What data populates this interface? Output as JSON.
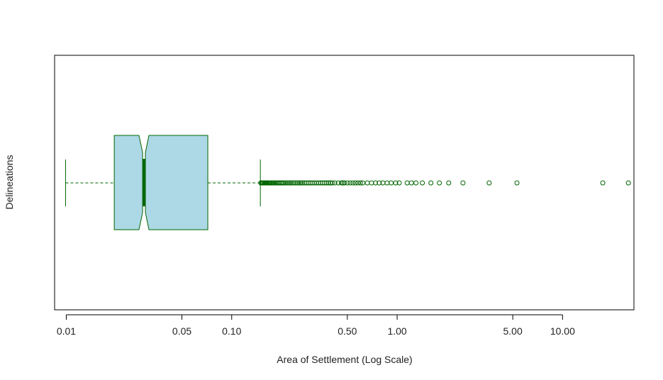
{
  "chart_data": {
    "type": "boxplot",
    "orientation": "horizontal",
    "notch": true,
    "title": "",
    "xlabel": "Area of Settlement (Log Scale)",
    "ylabel": "Delineations",
    "x_scale": "log",
    "xlim": [
      0.0085,
      27
    ],
    "x_ticks": [
      0.01,
      0.05,
      0.1,
      0.5,
      1.0,
      5.0,
      10.0
    ],
    "x_tick_labels": [
      "0.01",
      "0.05",
      "0.10",
      "0.50",
      "1.00",
      "5.00",
      "10.00"
    ],
    "box": {
      "whisker_low": 0.0099,
      "q1": 0.0195,
      "median": 0.0295,
      "q3": 0.0717,
      "whisker_high": 0.149,
      "notch_low": 0.0275,
      "notch_high": 0.0316
    },
    "outliers": [
      0.15,
      0.152,
      0.154,
      0.156,
      0.158,
      0.16,
      0.162,
      0.164,
      0.166,
      0.168,
      0.17,
      0.173,
      0.176,
      0.179,
      0.182,
      0.185,
      0.188,
      0.191,
      0.195,
      0.199,
      0.203,
      0.207,
      0.212,
      0.217,
      0.222,
      0.227,
      0.232,
      0.238,
      0.244,
      0.25,
      0.256,
      0.262,
      0.268,
      0.275,
      0.282,
      0.29,
      0.298,
      0.306,
      0.315,
      0.325,
      0.335,
      0.345,
      0.355,
      0.365,
      0.375,
      0.385,
      0.395,
      0.405,
      0.42,
      0.44,
      0.46,
      0.47,
      0.48,
      0.5,
      0.52,
      0.54,
      0.56,
      0.58,
      0.6,
      0.62,
      0.66,
      0.7,
      0.74,
      0.78,
      0.82,
      0.87,
      0.92,
      0.98,
      1.03,
      1.15,
      1.22,
      1.3,
      1.42,
      1.6,
      1.8,
      2.05,
      2.5,
      3.6,
      5.3,
      17.5,
      25.0
    ],
    "colors": {
      "box_fill": "#add8e6",
      "box_border": "#006400",
      "outlier": "#006400",
      "axis": "#000000"
    },
    "grid": false,
    "legend": false
  }
}
